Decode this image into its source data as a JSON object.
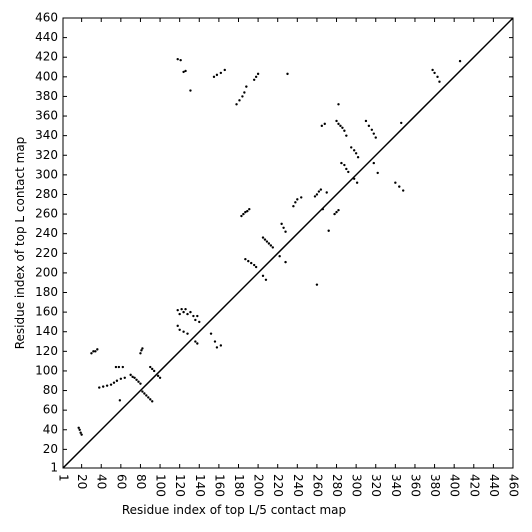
{
  "chart_data": {
    "type": "scatter",
    "xlabel": "Residue index of top L/5 contact map",
    "ylabel": "Residue index of top L contact map",
    "xlim": [
      1,
      460
    ],
    "ylim": [
      1,
      460
    ],
    "xticks": [
      1,
      20,
      40,
      60,
      80,
      100,
      120,
      140,
      160,
      180,
      200,
      220,
      240,
      260,
      280,
      300,
      320,
      340,
      360,
      380,
      400,
      420,
      440,
      460
    ],
    "yticks": [
      1,
      20,
      40,
      60,
      80,
      100,
      120,
      140,
      160,
      180,
      200,
      220,
      240,
      260,
      280,
      300,
      320,
      340,
      360,
      380,
      400,
      420,
      440,
      460
    ],
    "color": "#000000",
    "diagonal": true,
    "x": [
      17,
      18,
      19,
      20,
      30,
      32,
      34,
      36,
      38,
      42,
      46,
      50,
      53,
      56,
      60,
      64,
      55,
      58,
      62,
      59,
      80,
      81,
      82,
      70,
      72,
      74,
      76,
      78,
      80,
      82,
      84,
      86,
      88,
      90,
      92,
      90,
      92,
      94,
      98,
      100,
      118,
      121,
      124,
      126,
      131,
      118,
      120,
      122,
      124,
      126,
      128,
      131,
      118,
      120,
      124,
      128,
      134,
      136,
      138,
      140,
      136,
      138,
      152,
      156,
      158,
      162,
      155,
      158,
      162,
      166,
      178,
      181,
      184,
      186,
      188,
      196,
      198,
      200,
      183,
      185,
      187,
      189,
      191,
      187,
      190,
      193,
      196,
      198,
      205,
      207,
      209,
      211,
      213,
      215,
      205,
      208,
      222,
      228,
      224,
      226,
      228,
      230,
      236,
      238,
      240,
      244,
      258,
      260,
      262,
      264,
      260,
      265,
      268,
      266,
      270,
      272,
      278,
      280,
      282,
      280,
      282,
      284,
      286,
      288,
      290,
      282,
      285,
      288,
      290,
      292,
      295,
      298,
      300,
      302,
      298,
      301,
      310,
      313,
      316,
      318,
      320,
      318,
      322,
      340,
      344,
      348,
      346,
      378,
      380,
      383,
      385,
      406
    ],
    "y": [
      42,
      40,
      37,
      35,
      118,
      120,
      120,
      122,
      83,
      84,
      85,
      86,
      88,
      90,
      92,
      93,
      104,
      104,
      104,
      70,
      118,
      121,
      123,
      96,
      94,
      93,
      91,
      89,
      87,
      79,
      77,
      75,
      73,
      71,
      69,
      104,
      102,
      100,
      95,
      93,
      418,
      417,
      405,
      406,
      386,
      162,
      158,
      163,
      160,
      163,
      158,
      160,
      146,
      142,
      140,
      138,
      156,
      152,
      156,
      150,
      130,
      128,
      138,
      130,
      124,
      126,
      400,
      402,
      404,
      407,
      372,
      376,
      380,
      384,
      390,
      397,
      400,
      403,
      258,
      260,
      262,
      263,
      265,
      214,
      212,
      210,
      208,
      206,
      236,
      234,
      232,
      230,
      228,
      226,
      197,
      193,
      217,
      211,
      250,
      246,
      242,
      403,
      268,
      272,
      275,
      277,
      278,
      280,
      283,
      285,
      188,
      350,
      352,
      265,
      282,
      243,
      260,
      262,
      264,
      355,
      352,
      350,
      348,
      345,
      340,
      372,
      312,
      310,
      306,
      303,
      328,
      325,
      322,
      318,
      296,
      292,
      355,
      350,
      346,
      342,
      338,
      312,
      302,
      292,
      288,
      284,
      353,
      407,
      404,
      400,
      395,
      416
    ]
  }
}
